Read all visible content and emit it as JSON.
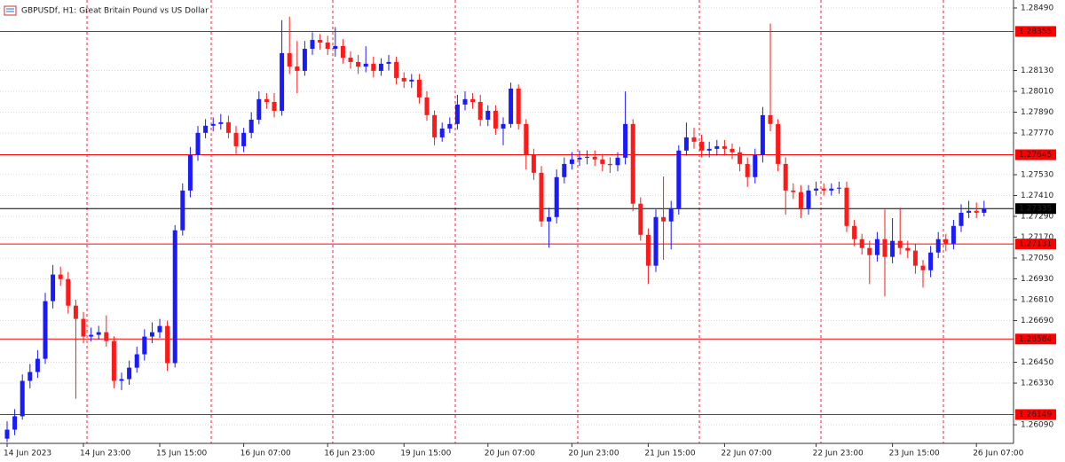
{
  "chart_data": {
    "type": "candlestick",
    "title": "GBPUSDf, H1:  Great Britain Pound vs US Dollar",
    "categories": [
      "14 Jun 2023",
      null,
      null,
      null,
      null,
      null,
      null,
      null,
      null,
      null,
      "14 Jun 23:00",
      null,
      null,
      null,
      null,
      null,
      null,
      null,
      null,
      null,
      "15 Jun 15:00",
      null,
      null,
      null,
      null,
      null,
      null,
      null,
      null,
      null,
      null,
      "16 Jun 07:00",
      null,
      null,
      null,
      null,
      null,
      null,
      null,
      null,
      null,
      null,
      "16 Jun 23:00",
      null,
      null,
      null,
      null,
      null,
      null,
      null,
      null,
      null,
      "19 Jun 15:00",
      null,
      null,
      null,
      null,
      null,
      null,
      null,
      null,
      null,
      null,
      "20 Jun 07:00",
      null,
      null,
      null,
      null,
      null,
      null,
      null,
      null,
      null,
      null,
      "20 Jun 23:00",
      null,
      null,
      null,
      null,
      null,
      null,
      null,
      null,
      null,
      "21 Jun 15:00",
      null,
      null,
      null,
      null,
      null,
      null,
      null,
      null,
      null,
      "22 Jun 07:00",
      null,
      null,
      null,
      null,
      null,
      null,
      null,
      null,
      null,
      null,
      null,
      "22 Jun 23:00",
      null,
      null,
      null,
      null,
      null,
      null,
      null,
      null,
      null,
      "23 Jun 15:00",
      null,
      null,
      null,
      null,
      null,
      null,
      null,
      null,
      null,
      null,
      "26 Jun 07:00",
      null
    ],
    "open": [
      1.2601,
      1.26062,
      1.26139,
      1.26343,
      1.26394,
      1.2647,
      1.26802,
      1.26955,
      1.26929,
      1.26776,
      1.267,
      1.26598,
      1.26608,
      1.26623,
      1.26572,
      1.26343,
      1.26353,
      1.26419,
      1.26496,
      1.26598,
      1.26623,
      1.26659,
      1.26445,
      1.2721,
      1.27439,
      1.27643,
      1.27771,
      1.27812,
      1.27822,
      1.27832,
      1.27771,
      1.27694,
      1.27771,
      1.27847,
      1.27965,
      1.27949,
      1.27898,
      1.2823,
      1.28153,
      1.28128,
      1.28255,
      1.28306,
      1.28291,
      1.28255,
      1.28271,
      1.28204,
      1.28179,
      1.28153,
      1.28169,
      1.28128,
      1.28169,
      1.28179,
      1.28087,
      1.28067,
      1.28077,
      1.27975,
      1.27873,
      1.27745,
      1.27796,
      1.27822,
      1.27934,
      1.27965,
      1.27949,
      1.27847,
      1.27898,
      1.27796,
      1.27822,
      1.28026,
      1.27822,
      1.27643,
      1.27541,
      1.27261,
      1.27286,
      1.27516,
      1.27592,
      1.27618,
      1.27628,
      1.27633,
      1.27618,
      1.27592,
      1.27585,
      1.27628,
      1.27822,
      1.27363,
      1.27184,
      1.27006,
      1.27286,
      1.27261,
      1.27337,
      1.27669,
      1.27745,
      1.2772,
      1.27669,
      1.27679,
      1.27694,
      1.27679,
      1.27659,
      1.27592,
      1.27516,
      1.27643,
      1.27873,
      1.27822,
      1.27592,
      1.27439,
      1.2743,
      1.27337,
      1.27439,
      1.2745,
      1.27439,
      1.2745,
      1.27455,
      1.27235,
      1.27159,
      1.27108,
      1.27067,
      1.27159,
      1.27057,
      1.27149,
      1.27108,
      1.27093,
      1.27006,
      1.2698,
      1.27082,
      1.27159,
      1.27133,
      1.27235,
      1.27311,
      1.27322,
      1.27311
    ],
    "high": [
      1.2611,
      1.2618,
      1.2638,
      1.2644,
      1.2652,
      1.2685,
      1.2701,
      1.27,
      1.2697,
      1.2681,
      1.2674,
      1.2665,
      1.2666,
      1.2672,
      1.266,
      1.2639,
      1.2646,
      1.2654,
      1.2664,
      1.2668,
      1.267,
      1.2669,
      1.2724,
      1.2748,
      1.2769,
      1.2781,
      1.2785,
      1.2786,
      1.2788,
      1.2787,
      1.2781,
      1.278,
      1.2789,
      1.2801,
      1.28,
      1.28,
      1.2842,
      1.2844,
      1.283,
      1.283,
      1.2835,
      1.2834,
      1.2833,
      1.2838,
      1.2831,
      1.2824,
      1.2822,
      1.2827,
      1.2821,
      1.282,
      1.2822,
      1.2821,
      1.2812,
      1.2811,
      1.2811,
      1.2801,
      1.279,
      1.2783,
      1.2786,
      1.2799,
      1.2801,
      1.28,
      1.2799,
      1.2793,
      1.2793,
      1.2786,
      1.2806,
      1.2805,
      1.2785,
      1.2768,
      1.2758,
      1.2734,
      1.2756,
      1.2763,
      1.2766,
      1.2767,
      1.2767,
      1.2767,
      1.2765,
      1.2763,
      1.2766,
      1.2801,
      1.2785,
      1.274,
      1.2722,
      1.2733,
      1.2752,
      1.2738,
      1.277,
      1.2783,
      1.278,
      1.2776,
      1.2772,
      1.2773,
      1.2773,
      1.2771,
      1.2769,
      1.2763,
      1.2768,
      1.2792,
      1.284,
      1.2785,
      1.2763,
      1.2748,
      1.2747,
      1.2747,
      1.2749,
      1.2748,
      1.2748,
      1.2749,
      1.2749,
      1.2727,
      1.2719,
      1.2715,
      1.272,
      1.2733,
      1.2728,
      1.2734,
      1.2715,
      1.2713,
      1.2704,
      1.2712,
      1.272,
      1.2719,
      1.2727,
      1.2736,
      1.2738,
      1.2737,
      1.2738
    ],
    "low": [
      1.2599,
      1.2603,
      1.2612,
      1.263,
      1.2636,
      1.2644,
      1.2676,
      1.2689,
      1.2673,
      1.2624,
      1.2656,
      1.2657,
      1.2658,
      1.2654,
      1.263,
      1.2629,
      1.2632,
      1.2639,
      1.2646,
      1.2656,
      1.2659,
      1.264,
      1.2642,
      1.2718,
      1.274,
      1.2761,
      1.2774,
      1.2778,
      1.2779,
      1.2774,
      1.2765,
      1.2766,
      1.2774,
      1.2782,
      1.2791,
      1.2786,
      1.2787,
      1.2811,
      1.28,
      1.281,
      1.2822,
      1.2825,
      1.2822,
      1.2821,
      1.2817,
      1.2814,
      1.2811,
      1.2812,
      1.2809,
      1.281,
      1.2813,
      1.2805,
      1.2803,
      1.2803,
      1.2794,
      1.2784,
      1.277,
      1.2772,
      1.2777,
      1.2779,
      1.279,
      1.2791,
      1.2781,
      1.2781,
      1.2776,
      1.277,
      1.278,
      1.2779,
      1.2756,
      1.275,
      1.2723,
      1.2711,
      1.2725,
      1.2748,
      1.2756,
      1.2758,
      1.2759,
      1.2758,
      1.2755,
      1.2754,
      1.2755,
      1.2759,
      1.2732,
      1.2715,
      1.269,
      1.2697,
      1.2704,
      1.271,
      1.273,
      1.2764,
      1.2768,
      1.2763,
      1.2763,
      1.2764,
      1.2764,
      1.2762,
      1.2755,
      1.2746,
      1.2748,
      1.276,
      1.2778,
      1.2755,
      1.273,
      1.2739,
      1.2728,
      1.273,
      1.2741,
      1.2741,
      1.2741,
      1.2742,
      1.272,
      1.2712,
      1.2707,
      1.269,
      1.2703,
      1.2683,
      1.2702,
      1.2707,
      1.2705,
      1.2696,
      1.2688,
      1.2694,
      1.2705,
      1.2709,
      1.271,
      1.272,
      1.2728,
      1.2728,
      1.2729
    ],
    "close": [
      1.26062,
      1.26139,
      1.26343,
      1.26394,
      1.2647,
      1.26802,
      1.26955,
      1.26929,
      1.26776,
      1.267,
      1.26598,
      1.26608,
      1.26623,
      1.26572,
      1.26343,
      1.26353,
      1.26419,
      1.26496,
      1.26598,
      1.26623,
      1.26659,
      1.26445,
      1.2721,
      1.27439,
      1.27643,
      1.27771,
      1.27812,
      1.27822,
      1.27832,
      1.27771,
      1.27694,
      1.27771,
      1.27847,
      1.27965,
      1.27949,
      1.27898,
      1.2823,
      1.28153,
      1.28128,
      1.28255,
      1.28306,
      1.28291,
      1.28255,
      1.28271,
      1.28204,
      1.28179,
      1.28153,
      1.28169,
      1.28128,
      1.28169,
      1.28179,
      1.28087,
      1.28067,
      1.28077,
      1.27975,
      1.27873,
      1.27745,
      1.27796,
      1.27822,
      1.27934,
      1.27965,
      1.27949,
      1.27847,
      1.27898,
      1.27796,
      1.27822,
      1.28026,
      1.27822,
      1.27643,
      1.27541,
      1.27261,
      1.27286,
      1.27516,
      1.27592,
      1.27618,
      1.27628,
      1.27633,
      1.27618,
      1.27592,
      1.27585,
      1.27628,
      1.27822,
      1.27363,
      1.27184,
      1.27006,
      1.27286,
      1.27261,
      1.27337,
      1.27669,
      1.27745,
      1.2772,
      1.27669,
      1.27679,
      1.27694,
      1.27679,
      1.27659,
      1.27592,
      1.27516,
      1.27643,
      1.27873,
      1.27822,
      1.27592,
      1.27439,
      1.2743,
      1.27337,
      1.27439,
      1.2745,
      1.27439,
      1.2745,
      1.27455,
      1.27235,
      1.27159,
      1.27108,
      1.27067,
      1.27159,
      1.27057,
      1.27149,
      1.27108,
      1.27093,
      1.27006,
      1.2698,
      1.27082,
      1.27159,
      1.27133,
      1.27235,
      1.27311,
      1.27322,
      1.27311,
      1.27335
    ],
    "up_color": "#1a1aff",
    "down_color": "#ff1a1a",
    "ylim": [
      1.25983,
      1.28536
    ],
    "yticks": [
      {
        "value": 1.2849,
        "label": "1.28490"
      },
      {
        "value": 1.2813,
        "label": "1.28130"
      },
      {
        "value": 1.2801,
        "label": "1.28010"
      },
      {
        "value": 1.2789,
        "label": "1.27890"
      },
      {
        "value": 1.2777,
        "label": "1.27770"
      },
      {
        "value": 1.2753,
        "label": "1.27530"
      },
      {
        "value": 1.2741,
        "label": "1.27410"
      },
      {
        "value": 1.2729,
        "label": "1.27290"
      },
      {
        "value": 1.2717,
        "label": "1.27170"
      },
      {
        "value": 1.2705,
        "label": "1.27050"
      },
      {
        "value": 1.2693,
        "label": "1.26930"
      },
      {
        "value": 1.2681,
        "label": "1.26810"
      },
      {
        "value": 1.2669,
        "label": "1.26690"
      },
      {
        "value": 1.2645,
        "label": "1.26450"
      },
      {
        "value": 1.2633,
        "label": "1.26330"
      },
      {
        "value": 1.2609,
        "label": "1.26090"
      }
    ],
    "grid": true,
    "levels": [
      1.28355,
      1.27645,
      1.27131,
      1.26584,
      1.26149
    ],
    "level_color": "#ff0000",
    "current_price": 1.27335
  }
}
